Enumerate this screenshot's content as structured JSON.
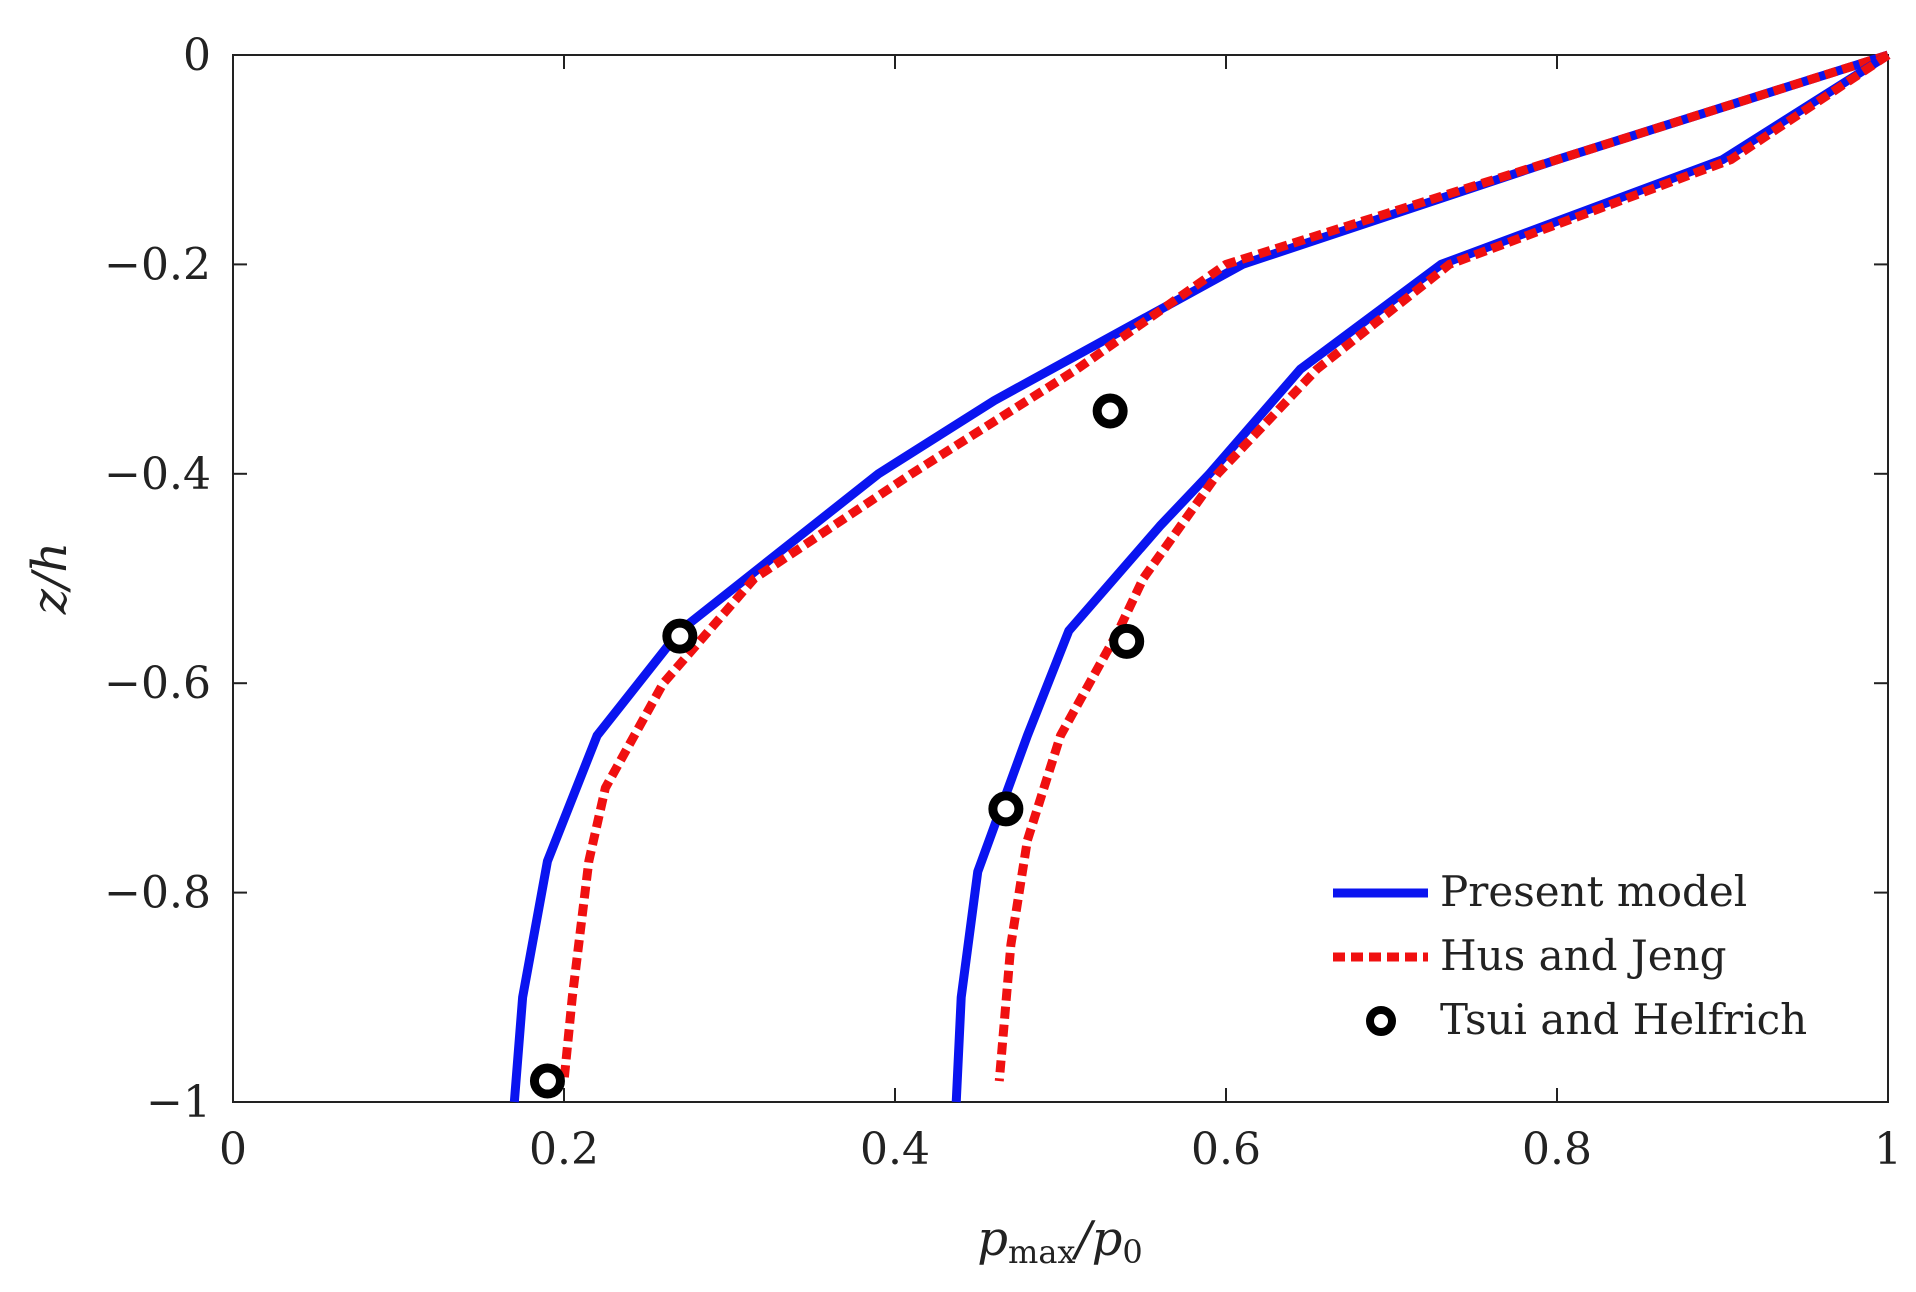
{
  "chart_data": {
    "type": "line",
    "title": "",
    "xlabel": "p_max/p_0",
    "xlabel_main": "p",
    "xlabel_sub1": "max",
    "xlabel_slash": "/p",
    "xlabel_sub2": "0",
    "ylabel": "z/h",
    "xlim": [
      0,
      1
    ],
    "ylim": [
      -1,
      0
    ],
    "xticks": [
      "0",
      "0.2",
      "0.4",
      "0.6",
      "0.8",
      "1"
    ],
    "xtick_values": [
      0,
      0.2,
      0.4,
      0.6,
      0.8,
      1
    ],
    "yticks": [
      "0",
      "−0.2",
      "−0.4",
      "−0.6",
      "−0.8",
      "−1"
    ],
    "ytick_values": [
      0,
      -0.2,
      -0.4,
      -0.6,
      -0.8,
      -1
    ],
    "grid": false,
    "legend_position": "bottom-right",
    "legend": [
      "Present model",
      "Hus and Jeng",
      "Tsui and Helfrich"
    ],
    "colors": {
      "present": "#0a14f0",
      "hus": "#f01010",
      "tsui": "#000000"
    },
    "series": [
      {
        "name": "Present model",
        "style": "solid",
        "color": "#0a14f0",
        "x": [
          1,
          0.8,
          0.61,
          0.46,
          0.39,
          0.35,
          0.27,
          0.22,
          0.19,
          0.175,
          0.17
        ],
        "y": [
          0,
          -0.1,
          -0.2,
          -0.33,
          -0.4,
          -0.45,
          -0.55,
          -0.65,
          -0.77,
          -0.9,
          -1
        ]
      },
      {
        "name": "Hus and Jeng",
        "style": "dotted",
        "color": "#f01010",
        "x": [
          1,
          0.8,
          0.6,
          0.51,
          0.41,
          0.315,
          0.26,
          0.225,
          0.215,
          0.205,
          0.2
        ],
        "y": [
          0,
          -0.1,
          -0.2,
          -0.3,
          -0.4,
          -0.5,
          -0.6,
          -0.7,
          -0.77,
          -0.9,
          -0.98
        ]
      },
      {
        "name": "Present model",
        "style": "solid",
        "color": "#0a14f0",
        "x": [
          1,
          0.9,
          0.73,
          0.645,
          0.59,
          0.56,
          0.505,
          0.48,
          0.45,
          0.44,
          0.437
        ],
        "y": [
          0,
          -0.1,
          -0.2,
          -0.3,
          -0.4,
          -0.45,
          -0.55,
          -0.65,
          -0.78,
          -0.9,
          -1
        ]
      },
      {
        "name": "Hus and Jeng",
        "style": "dotted",
        "color": "#f01010",
        "x": [
          1,
          0.905,
          0.735,
          0.655,
          0.595,
          0.55,
          0.535,
          0.5,
          0.48,
          0.47,
          0.463
        ],
        "y": [
          0,
          -0.1,
          -0.2,
          -0.3,
          -0.4,
          -0.5,
          -0.55,
          -0.65,
          -0.75,
          -0.85,
          -0.98
        ]
      },
      {
        "name": "Tsui and Helfrich",
        "style": "marker",
        "color": "#000000",
        "x": [
          0.53,
          0.27,
          0.54,
          0.467,
          0.19
        ],
        "y": [
          -0.34,
          -0.555,
          -0.56,
          -0.72,
          -0.98
        ]
      }
    ]
  }
}
